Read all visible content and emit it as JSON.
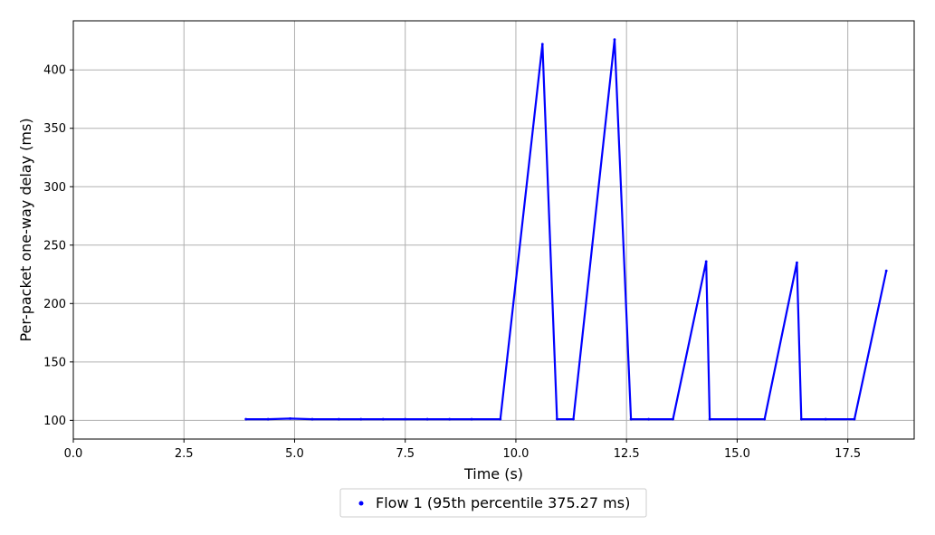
{
  "chart_data": {
    "type": "scatter",
    "xlabel": "Time (s)",
    "ylabel": "Per-packet one-way delay (ms)",
    "xlim": [
      0,
      19
    ],
    "ylim": [
      84,
      442
    ],
    "xticks": [
      0,
      2.5,
      5,
      7.5,
      10,
      12.5,
      15,
      17.5
    ],
    "xtick_labels": [
      "0.0",
      "2.5",
      "5.0",
      "7.5",
      "10.0",
      "12.5",
      "15.0",
      "17.5"
    ],
    "yticks": [
      100,
      150,
      200,
      250,
      300,
      350,
      400
    ],
    "ytick_labels": [
      "100",
      "150",
      "200",
      "250",
      "300",
      "350",
      "400"
    ],
    "grid": true,
    "legend_position": "bottom-center",
    "series": [
      {
        "name": "Flow 1 (95th percentile 375.27 ms)",
        "color": "#0000ff",
        "points": [
          [
            3.9,
            101
          ],
          [
            4.4,
            101
          ],
          [
            4.9,
            101.5
          ],
          [
            5.4,
            101
          ],
          [
            6.0,
            101
          ],
          [
            6.5,
            101
          ],
          [
            7.0,
            101
          ],
          [
            7.5,
            101
          ],
          [
            8.0,
            101
          ],
          [
            8.5,
            101
          ],
          [
            9.0,
            101
          ],
          [
            9.65,
            101
          ],
          [
            10.6,
            422
          ],
          [
            10.93,
            101
          ],
          [
            11.3,
            101
          ],
          [
            12.23,
            426
          ],
          [
            12.6,
            101
          ],
          [
            13.0,
            101
          ],
          [
            13.55,
            101
          ],
          [
            14.3,
            236
          ],
          [
            14.38,
            101
          ],
          [
            15.0,
            101
          ],
          [
            15.62,
            101
          ],
          [
            16.35,
            235
          ],
          [
            16.45,
            101
          ],
          [
            17.0,
            101
          ],
          [
            17.65,
            101
          ],
          [
            18.37,
            228
          ]
        ]
      }
    ]
  }
}
